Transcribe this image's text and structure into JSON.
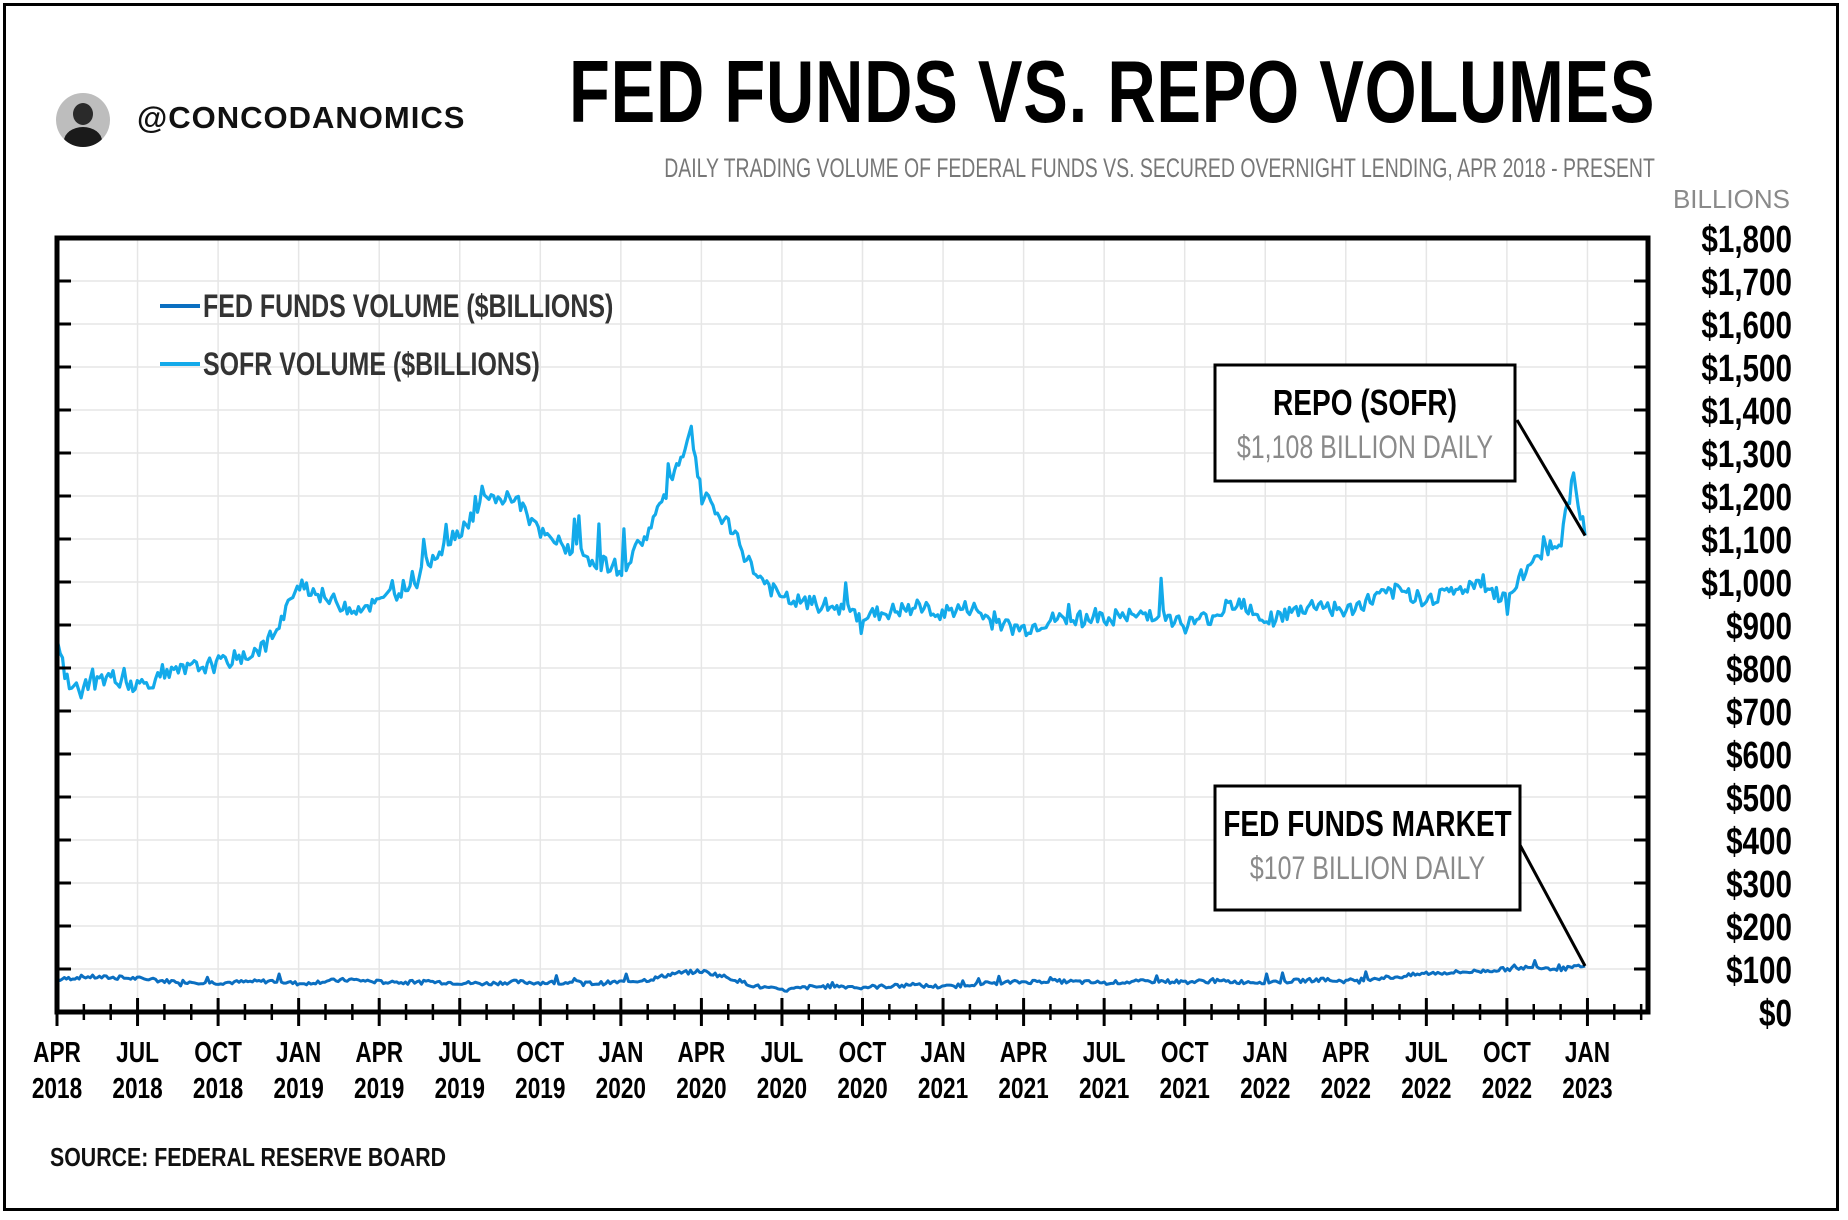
{
  "header": {
    "handle": "@CONCODANOMICS",
    "title": "FED FUNDS VS. REPO VOLUMES",
    "subtitle": "DAILY TRADING VOLUME OF FEDERAL FUNDS VS. SECURED OVERNIGHT LENDING, APR 2018 - PRESENT"
  },
  "footer": {
    "source": "SOURCE: FEDERAL RESERVE BOARD"
  },
  "colors": {
    "fed_funds": "#0b6fc1",
    "sofr": "#13aaea",
    "grid": "#e6e6e6",
    "muted": "#8a8a8a"
  },
  "chart_data": {
    "type": "line",
    "title": "FED FUNDS VS. REPO VOLUMES",
    "ylabel": "BILLIONS",
    "ylim": [
      0,
      1800
    ],
    "y_ticks": [
      "$0",
      "$100",
      "$200",
      "$300",
      "$400",
      "$500",
      "$600",
      "$700",
      "$800",
      "$900",
      "$1,000",
      "$1,100",
      "$1,200",
      "$1,300",
      "$1,400",
      "$1,500",
      "$1,600",
      "$1,700",
      "$1,800"
    ],
    "y_tick_values": [
      0,
      100,
      200,
      300,
      400,
      500,
      600,
      700,
      800,
      900,
      1000,
      1100,
      1200,
      1300,
      1400,
      1500,
      1600,
      1700,
      1800
    ],
    "x_ticks": [
      {
        "month": "APR",
        "year": "2018",
        "date": "2018-04-01"
      },
      {
        "month": "JUL",
        "year": "2018",
        "date": "2018-07-01"
      },
      {
        "month": "OCT",
        "year": "2018",
        "date": "2018-10-01"
      },
      {
        "month": "JAN",
        "year": "2019",
        "date": "2019-01-01"
      },
      {
        "month": "APR",
        "year": "2019",
        "date": "2019-04-01"
      },
      {
        "month": "JUL",
        "year": "2019",
        "date": "2019-07-01"
      },
      {
        "month": "OCT",
        "year": "2019",
        "date": "2019-10-01"
      },
      {
        "month": "JAN",
        "year": "2020",
        "date": "2020-01-01"
      },
      {
        "month": "APR",
        "year": "2020",
        "date": "2020-04-01"
      },
      {
        "month": "JUL",
        "year": "2020",
        "date": "2020-07-01"
      },
      {
        "month": "OCT",
        "year": "2020",
        "date": "2020-10-01"
      },
      {
        "month": "JAN",
        "year": "2021",
        "date": "2021-01-01"
      },
      {
        "month": "APR",
        "year": "2021",
        "date": "2021-04-01"
      },
      {
        "month": "JUL",
        "year": "2021",
        "date": "2021-07-01"
      },
      {
        "month": "OCT",
        "year": "2021",
        "date": "2021-10-01"
      },
      {
        "month": "JAN",
        "year": "2022",
        "date": "2022-01-01"
      },
      {
        "month": "APR",
        "year": "2022",
        "date": "2022-04-01"
      },
      {
        "month": "JUL",
        "year": "2022",
        "date": "2022-07-01"
      },
      {
        "month": "OCT",
        "year": "2022",
        "date": "2022-10-01"
      },
      {
        "month": "JAN",
        "year": "2023",
        "date": "2023-01-01"
      }
    ],
    "legend": "top-left",
    "grid": true,
    "series": [
      {
        "name": "FED FUNDS VOLUME ($BILLIONS)",
        "color": "#0b6fc1",
        "points": [
          [
            "2018-04-02",
            75
          ],
          [
            "2018-05-01",
            82
          ],
          [
            "2018-06-01",
            80
          ],
          [
            "2018-07-01",
            78
          ],
          [
            "2018-08-01",
            72
          ],
          [
            "2018-09-01",
            70
          ],
          [
            "2018-10-01",
            68
          ],
          [
            "2018-11-01",
            70
          ],
          [
            "2018-12-01",
            72
          ],
          [
            "2019-01-01",
            66
          ],
          [
            "2019-02-01",
            72
          ],
          [
            "2019-03-01",
            75
          ],
          [
            "2019-04-01",
            70
          ],
          [
            "2019-05-01",
            68
          ],
          [
            "2019-06-01",
            70
          ],
          [
            "2019-07-01",
            68
          ],
          [
            "2019-08-01",
            66
          ],
          [
            "2019-09-01",
            70
          ],
          [
            "2019-10-01",
            68
          ],
          [
            "2019-11-01",
            70
          ],
          [
            "2019-12-01",
            66
          ],
          [
            "2020-01-01",
            70
          ],
          [
            "2020-02-01",
            75
          ],
          [
            "2020-03-01",
            90
          ],
          [
            "2020-04-01",
            95
          ],
          [
            "2020-05-01",
            80
          ],
          [
            "2020-06-01",
            60
          ],
          [
            "2020-07-01",
            50
          ],
          [
            "2020-08-01",
            58
          ],
          [
            "2020-09-01",
            60
          ],
          [
            "2020-10-01",
            58
          ],
          [
            "2020-11-01",
            60
          ],
          [
            "2020-12-01",
            62
          ],
          [
            "2021-01-01",
            58
          ],
          [
            "2021-02-01",
            65
          ],
          [
            "2021-03-01",
            68
          ],
          [
            "2021-04-01",
            70
          ],
          [
            "2021-05-01",
            72
          ],
          [
            "2021-06-01",
            70
          ],
          [
            "2021-07-01",
            68
          ],
          [
            "2021-08-01",
            70
          ],
          [
            "2021-09-01",
            72
          ],
          [
            "2021-10-01",
            70
          ],
          [
            "2021-11-01",
            72
          ],
          [
            "2021-12-01",
            70
          ],
          [
            "2022-01-01",
            70
          ],
          [
            "2022-02-01",
            72
          ],
          [
            "2022-03-01",
            75
          ],
          [
            "2022-04-01",
            72
          ],
          [
            "2022-05-01",
            78
          ],
          [
            "2022-06-01",
            82
          ],
          [
            "2022-07-01",
            90
          ],
          [
            "2022-08-01",
            92
          ],
          [
            "2022-09-01",
            95
          ],
          [
            "2022-10-01",
            100
          ],
          [
            "2022-11-01",
            105
          ],
          [
            "2022-12-01",
            100
          ],
          [
            "2022-12-28",
            107
          ]
        ]
      },
      {
        "name": "SOFR VOLUME ($BILLIONS)",
        "color": "#13aaea",
        "points": [
          [
            "2018-04-02",
            850
          ],
          [
            "2018-04-15",
            750
          ],
          [
            "2018-05-01",
            760
          ],
          [
            "2018-06-01",
            780
          ],
          [
            "2018-07-01",
            760
          ],
          [
            "2018-08-01",
            780
          ],
          [
            "2018-09-01",
            800
          ],
          [
            "2018-10-01",
            810
          ],
          [
            "2018-11-01",
            830
          ],
          [
            "2018-12-01",
            860
          ],
          [
            "2019-01-01",
            1000
          ],
          [
            "2019-02-01",
            960
          ],
          [
            "2019-03-01",
            940
          ],
          [
            "2019-04-01",
            950
          ],
          [
            "2019-05-01",
            990
          ],
          [
            "2019-06-01",
            1060
          ],
          [
            "2019-07-01",
            1120
          ],
          [
            "2019-08-01",
            1190
          ],
          [
            "2019-09-01",
            1200
          ],
          [
            "2019-10-01",
            1110
          ],
          [
            "2019-11-01",
            1080
          ],
          [
            "2019-12-01",
            1050
          ],
          [
            "2020-01-01",
            1030
          ],
          [
            "2020-02-01",
            1120
          ],
          [
            "2020-03-01",
            1260
          ],
          [
            "2020-03-20",
            1350
          ],
          [
            "2020-04-01",
            1200
          ],
          [
            "2020-05-01",
            1130
          ],
          [
            "2020-06-01",
            1020
          ],
          [
            "2020-07-01",
            960
          ],
          [
            "2020-08-01",
            950
          ],
          [
            "2020-09-01",
            940
          ],
          [
            "2020-10-01",
            920
          ],
          [
            "2020-11-01",
            930
          ],
          [
            "2020-12-01",
            940
          ],
          [
            "2021-01-01",
            930
          ],
          [
            "2021-02-01",
            940
          ],
          [
            "2021-03-01",
            900
          ],
          [
            "2021-04-01",
            890
          ],
          [
            "2021-05-01",
            910
          ],
          [
            "2021-06-01",
            920
          ],
          [
            "2021-07-01",
            910
          ],
          [
            "2021-08-01",
            920
          ],
          [
            "2021-09-01",
            930
          ],
          [
            "2021-10-01",
            900
          ],
          [
            "2021-11-01",
            920
          ],
          [
            "2021-12-01",
            960
          ],
          [
            "2022-01-01",
            910
          ],
          [
            "2022-02-01",
            930
          ],
          [
            "2022-03-01",
            950
          ],
          [
            "2022-04-01",
            930
          ],
          [
            "2022-05-01",
            960
          ],
          [
            "2022-06-01",
            980
          ],
          [
            "2022-07-01",
            960
          ],
          [
            "2022-08-01",
            980
          ],
          [
            "2022-09-01",
            990
          ],
          [
            "2022-10-01",
            960
          ],
          [
            "2022-11-01",
            1060
          ],
          [
            "2022-12-01",
            1100
          ],
          [
            "2022-12-15",
            1250
          ],
          [
            "2022-12-28",
            1108
          ]
        ]
      }
    ],
    "annotations": [
      {
        "title": "REPO (SOFR)",
        "value": "$1,108 BILLION DAILY",
        "target_date": "2022-12-28",
        "target_value": 1108
      },
      {
        "title": "FED FUNDS MARKET",
        "value": "$107 BILLION DAILY",
        "target_date": "2022-12-28",
        "target_value": 107
      }
    ]
  }
}
